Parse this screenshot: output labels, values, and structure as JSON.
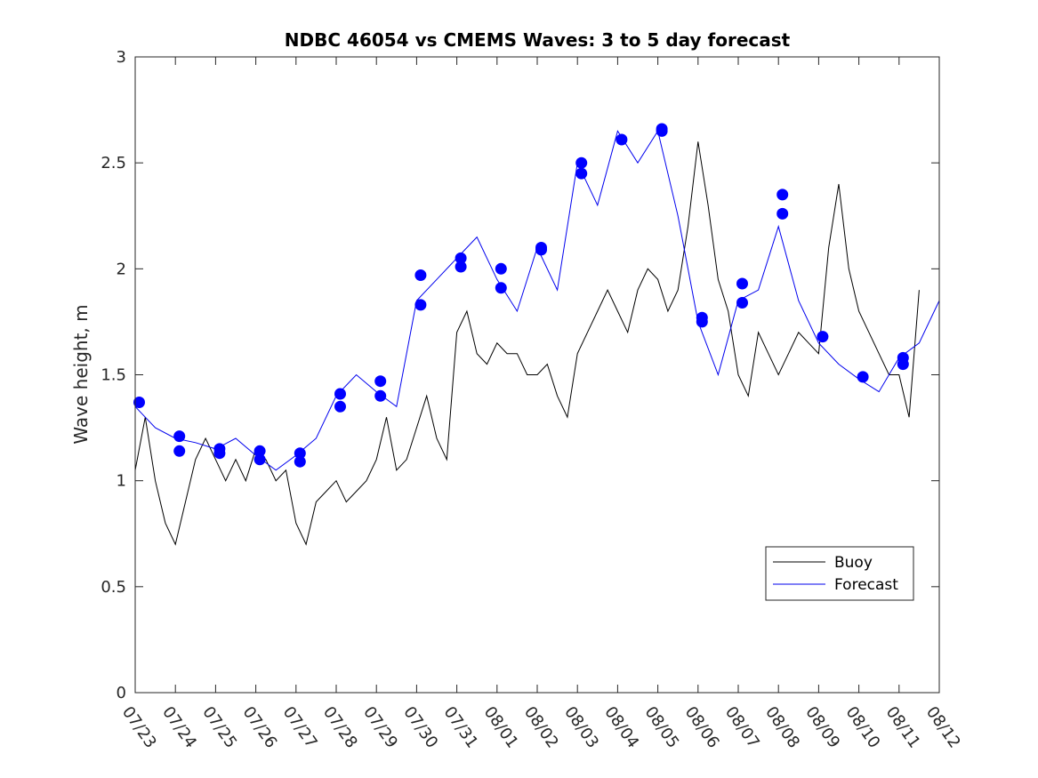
{
  "chart_data": {
    "type": "line",
    "title": "NDBC 46054 vs CMEMS Waves: 3 to 5 day forecast",
    "xlabel": "",
    "ylabel": "Wave height, m",
    "ylim": [
      0,
      3
    ],
    "yticks": [
      "0",
      "0.5",
      "1",
      "1.5",
      "2",
      "2.5",
      "3"
    ],
    "xlim_days": [
      0,
      20
    ],
    "xticks": [
      "07/23",
      "07/24",
      "07/25",
      "07/26",
      "07/27",
      "07/28",
      "07/29",
      "07/30",
      "07/31",
      "08/01",
      "08/02",
      "08/03",
      "08/04",
      "08/05",
      "08/06",
      "08/07",
      "08/08",
      "08/09",
      "08/10",
      "08/11",
      "08/12"
    ],
    "grid": false,
    "legend": {
      "placement": "bottom-right",
      "entries": [
        "Buoy",
        "Forecast"
      ]
    },
    "colors": {
      "buoy": "#000000",
      "forecast": "#0000ee",
      "markers": "#0000ff"
    },
    "series": [
      {
        "name": "Buoy",
        "x_days": [
          0.0,
          0.25,
          0.5,
          0.75,
          1.0,
          1.25,
          1.5,
          1.75,
          2.0,
          2.25,
          2.5,
          2.75,
          3.0,
          3.25,
          3.5,
          3.75,
          4.0,
          4.25,
          4.5,
          4.75,
          5.0,
          5.25,
          5.5,
          5.75,
          6.0,
          6.25,
          6.5,
          6.75,
          7.0,
          7.25,
          7.5,
          7.75,
          8.0,
          8.25,
          8.5,
          8.75,
          9.0,
          9.25,
          9.5,
          9.75,
          10.0,
          10.25,
          10.5,
          10.75,
          11.0,
          11.25,
          11.5,
          11.75,
          12.0,
          12.25,
          12.5,
          12.75,
          13.0,
          13.25,
          13.5,
          13.75,
          14.0,
          14.25,
          14.5,
          14.75,
          15.0,
          15.25,
          15.5,
          15.75,
          16.0,
          16.25,
          16.5,
          16.75,
          17.0,
          17.25,
          17.5,
          17.75,
          18.0,
          18.25,
          18.5,
          18.75,
          19.0,
          19.25,
          19.5
        ],
        "values": [
          1.05,
          1.3,
          1.0,
          0.8,
          0.7,
          0.9,
          1.1,
          1.2,
          1.1,
          1.0,
          1.1,
          1.0,
          1.15,
          1.1,
          1.0,
          1.05,
          0.8,
          0.7,
          0.9,
          0.95,
          1.0,
          0.9,
          0.95,
          1.0,
          1.1,
          1.3,
          1.05,
          1.1,
          1.25,
          1.4,
          1.2,
          1.1,
          1.7,
          1.8,
          1.6,
          1.55,
          1.65,
          1.6,
          1.6,
          1.5,
          1.5,
          1.55,
          1.4,
          1.3,
          1.6,
          1.7,
          1.8,
          1.9,
          1.8,
          1.7,
          1.9,
          2.0,
          1.95,
          1.8,
          1.9,
          2.2,
          2.6,
          2.3,
          1.95,
          1.8,
          1.5,
          1.4,
          1.7,
          1.6,
          1.5,
          1.6,
          1.7,
          1.65,
          1.6,
          2.1,
          2.4,
          2.0,
          1.8,
          1.7,
          1.6,
          1.5,
          1.5,
          1.3,
          1.9
        ]
      },
      {
        "name": "Forecast",
        "x_days": [
          0.0,
          0.5,
          1.0,
          1.5,
          2.0,
          2.5,
          3.0,
          3.5,
          4.0,
          4.5,
          5.0,
          5.5,
          6.0,
          6.5,
          7.0,
          7.5,
          8.0,
          8.5,
          9.0,
          9.5,
          10.0,
          10.5,
          11.0,
          11.5,
          12.0,
          12.5,
          13.0,
          13.5,
          14.0,
          14.5,
          15.0,
          15.5,
          16.0,
          16.5,
          17.0,
          17.5,
          18.0,
          18.5,
          19.0,
          19.5,
          20.0
        ],
        "values": [
          1.35,
          1.25,
          1.2,
          1.18,
          1.15,
          1.2,
          1.12,
          1.05,
          1.12,
          1.2,
          1.4,
          1.5,
          1.42,
          1.35,
          1.85,
          1.95,
          2.05,
          2.15,
          1.95,
          1.8,
          2.1,
          1.9,
          2.5,
          2.3,
          2.65,
          2.5,
          2.65,
          2.25,
          1.75,
          1.5,
          1.85,
          1.9,
          2.2,
          1.85,
          1.65,
          1.55,
          1.48,
          1.42,
          1.58,
          1.65,
          1.85
        ]
      }
    ],
    "markers_days": [
      0.1,
      1.1,
      1.1,
      2.1,
      2.1,
      3.1,
      3.1,
      4.1,
      4.1,
      5.1,
      5.1,
      6.1,
      6.1,
      7.1,
      7.1,
      8.1,
      8.1,
      9.1,
      9.1,
      10.1,
      10.1,
      11.1,
      11.1,
      12.1,
      13.1,
      13.1,
      14.1,
      14.1,
      15.1,
      15.1,
      16.1,
      16.1,
      17.1,
      18.1,
      19.1,
      19.1
    ],
    "markers_values": [
      1.37,
      1.21,
      1.14,
      1.15,
      1.13,
      1.14,
      1.1,
      1.13,
      1.09,
      1.41,
      1.35,
      1.47,
      1.4,
      1.97,
      1.83,
      2.05,
      2.01,
      2.0,
      1.91,
      2.1,
      2.09,
      2.5,
      2.45,
      2.61,
      2.66,
      2.65,
      1.77,
      1.75,
      1.93,
      1.84,
      2.35,
      2.26,
      1.68,
      1.49,
      1.58,
      1.55
    ]
  }
}
